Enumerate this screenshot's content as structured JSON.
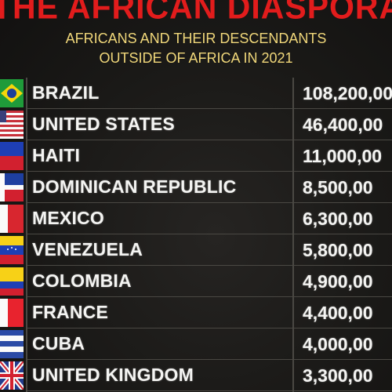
{
  "header": {
    "title": "THE AFRICAN DIASPORA",
    "subtitle_line1": "AFRICANS AND THEIR DESCENDANTS",
    "subtitle_line2": "OUTSIDE OF AFRICA IN 2021"
  },
  "rows": [
    {
      "country": "BRAZIL",
      "value": "108,200,00",
      "flag": "brazil-flag-icon"
    },
    {
      "country": "UNITED STATES",
      "value": "46,400,00",
      "flag": "united-states-flag-icon"
    },
    {
      "country": "HAITI",
      "value": "11,000,00",
      "flag": "haiti-flag-icon"
    },
    {
      "country": "DOMINICAN REPUBLIC",
      "value": "8,500,00",
      "flag": "dominican-republic-flag-icon"
    },
    {
      "country": "MEXICO",
      "value": "6,300,00",
      "flag": "mexico-flag-icon"
    },
    {
      "country": "VENEZUELA",
      "value": "5,800,00",
      "flag": "venezuela-flag-icon"
    },
    {
      "country": "COLOMBIA",
      "value": "4,900,00",
      "flag": "colombia-flag-icon"
    },
    {
      "country": "FRANCE",
      "value": "4,400,00",
      "flag": "france-flag-icon"
    },
    {
      "country": "CUBA",
      "value": "4,000,00",
      "flag": "cuba-flag-icon"
    },
    {
      "country": "UNITED KINGDOM",
      "value": "3,300,00",
      "flag": "united-kingdom-flag-icon"
    }
  ],
  "colors": {
    "title": "#e21c1c",
    "subtitle": "#f0d77a",
    "text": "#f4f4f2",
    "background": "#1a1917"
  }
}
